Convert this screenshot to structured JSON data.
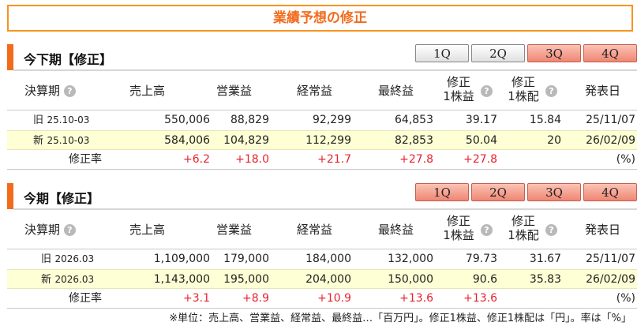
{
  "page_title": "業績予想の修正",
  "tabs": [
    "1Q",
    "2Q",
    "3Q",
    "4Q"
  ],
  "headers": {
    "period": "決算期",
    "help": "?",
    "sales": "売上高",
    "op": "営業益",
    "ordinary": "経常益",
    "net": "最終益",
    "eps_top": "修正",
    "eps_bot": "1株益",
    "div_top": "修正",
    "div_bot": "1株配",
    "date": "発表日"
  },
  "sections": [
    {
      "label": "今下期【修正】",
      "active_tab": "3Q",
      "old": {
        "tag": "旧",
        "period": "25.10-03",
        "sales": "550,006",
        "op": "88,829",
        "ordinary": "92,299",
        "net": "64,853",
        "eps": "39.17",
        "div": "15.84",
        "date": "25/11/07"
      },
      "new": {
        "tag": "新",
        "period": "25.10-03",
        "sales": "584,006",
        "op": "104,829",
        "ordinary": "112,299",
        "net": "82,853",
        "eps": "50.04",
        "div": "20",
        "date": "26/02/09"
      },
      "rate": {
        "label": "修正率",
        "sales": "+6.2",
        "op": "+18.0",
        "ordinary": "+21.7",
        "net": "+27.8",
        "eps": "+27.8",
        "unit": "(%)"
      }
    },
    {
      "label": "今期【修正】",
      "active_tab": "",
      "old": {
        "tag": "旧",
        "period": "2026.03",
        "sales": "1,109,000",
        "op": "179,000",
        "ordinary": "184,000",
        "net": "132,000",
        "eps": "79.73",
        "div": "31.67",
        "date": "25/11/07"
      },
      "new": {
        "tag": "新",
        "period": "2026.03",
        "sales": "1,143,000",
        "op": "195,000",
        "ordinary": "204,000",
        "net": "150,000",
        "eps": "90.6",
        "div": "35.83",
        "date": "26/02/09"
      },
      "rate": {
        "label": "修正率",
        "sales": "+3.1",
        "op": "+8.9",
        "ordinary": "+10.9",
        "net": "+13.6",
        "eps": "+13.6",
        "unit": "(%)"
      }
    }
  ],
  "footnote": "※単位：売上高、営業益、経常益、最終益…「百万円」。修正1株益、修正1株配は「円」。率は「%」"
}
